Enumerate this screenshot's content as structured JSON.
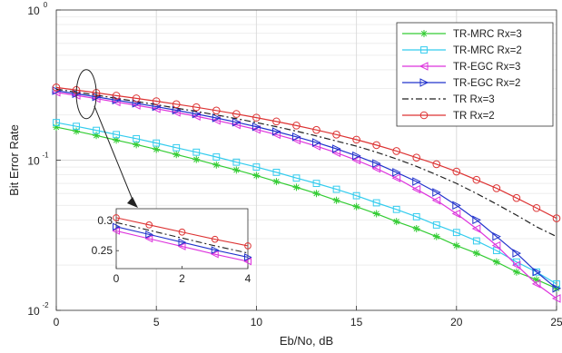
{
  "chart_data": [
    {
      "type": "line",
      "title": "",
      "xlabel": "Eb/No, dB",
      "ylabel": "Bit Error Rate",
      "xlim": [
        0,
        25
      ],
      "ylim": [
        0.01,
        1
      ],
      "yscale": "log",
      "grid": true,
      "legend_position": "top-right",
      "x_ticks": [
        0,
        5,
        10,
        15,
        20,
        25
      ],
      "y_ticks": [
        {
          "value": 0.01,
          "base": "10",
          "exp": "-2"
        },
        {
          "value": 0.1,
          "base": "10",
          "exp": "-1"
        },
        {
          "value": 1,
          "base": "10",
          "exp": "0"
        }
      ],
      "x": [
        0,
        1,
        2,
        3,
        4,
        5,
        6,
        7,
        8,
        9,
        10,
        11,
        12,
        13,
        14,
        15,
        16,
        17,
        18,
        19,
        20,
        21,
        22,
        23,
        24,
        25
      ],
      "series": [
        {
          "name": "TR-MRC Rx=3",
          "color": "#33cc33",
          "marker": "star",
          "values": [
            0.166,
            0.156,
            0.146,
            0.136,
            0.127,
            0.118,
            0.109,
            0.101,
            0.093,
            0.086,
            0.079,
            0.072,
            0.066,
            0.06,
            0.054,
            0.049,
            0.044,
            0.039,
            0.035,
            0.031,
            0.027,
            0.024,
            0.021,
            0.018,
            0.016,
            0.014
          ]
        },
        {
          "name": "TR-MRC Rx=2",
          "color": "#33ccee",
          "marker": "square",
          "values": [
            0.178,
            0.168,
            0.158,
            0.148,
            0.139,
            0.13,
            0.121,
            0.113,
            0.105,
            0.097,
            0.09,
            0.083,
            0.076,
            0.07,
            0.064,
            0.058,
            0.052,
            0.047,
            0.042,
            0.037,
            0.033,
            0.029,
            0.025,
            0.021,
            0.018,
            0.015
          ]
        },
        {
          "name": "TR-EGC Rx=3",
          "color": "#dd33dd",
          "marker": "triangle-left",
          "values": [
            0.283,
            0.27,
            0.257,
            0.244,
            0.232,
            0.22,
            0.208,
            0.196,
            0.184,
            0.172,
            0.16,
            0.148,
            0.136,
            0.124,
            0.112,
            0.1,
            0.088,
            0.076,
            0.064,
            0.054,
            0.044,
            0.035,
            0.027,
            0.02,
            0.015,
            0.012
          ]
        },
        {
          "name": "TR-EGC Rx=2",
          "color": "#2233cc",
          "marker": "triangle-right",
          "values": [
            0.29,
            0.277,
            0.264,
            0.251,
            0.239,
            0.227,
            0.215,
            0.203,
            0.191,
            0.179,
            0.167,
            0.155,
            0.143,
            0.131,
            0.119,
            0.107,
            0.095,
            0.083,
            0.072,
            0.061,
            0.05,
            0.04,
            0.031,
            0.024,
            0.018,
            0.014
          ]
        },
        {
          "name": "TR Rx=3",
          "color": "#222222",
          "marker": "none",
          "dash": "dash-dot",
          "values": [
            0.297,
            0.284,
            0.271,
            0.258,
            0.246,
            0.234,
            0.222,
            0.211,
            0.2,
            0.189,
            0.178,
            0.167,
            0.156,
            0.145,
            0.134,
            0.124,
            0.113,
            0.102,
            0.091,
            0.08,
            0.07,
            0.06,
            0.051,
            0.043,
            0.036,
            0.031
          ]
        },
        {
          "name": "TR Rx=2",
          "color": "#dd3333",
          "marker": "circle",
          "values": [
            0.305,
            0.293,
            0.281,
            0.269,
            0.258,
            0.247,
            0.236,
            0.225,
            0.214,
            0.203,
            0.192,
            0.181,
            0.17,
            0.159,
            0.148,
            0.137,
            0.126,
            0.115,
            0.104,
            0.094,
            0.084,
            0.074,
            0.065,
            0.056,
            0.048,
            0.041
          ]
        }
      ],
      "annotations": [
        "ellipse around the curves near Eb/No = 1.5 dB with an arrow pointing to the zoomed inset"
      ]
    },
    {
      "type": "line",
      "role": "inset",
      "xlim": [
        0,
        4
      ],
      "ylim": [
        0.22,
        0.32
      ],
      "x_ticks": [
        0,
        2,
        4
      ],
      "y_ticks": [
        0.25,
        0.3
      ],
      "x_tick_labels": [
        "0",
        "2",
        "4"
      ],
      "y_tick_labels": [
        "0.25",
        "0.3"
      ],
      "x": [
        0,
        1,
        2,
        3,
        4
      ],
      "series": [
        {
          "name": "TR-EGC Rx=3",
          "color": "#dd33dd",
          "marker": "triangle-left",
          "values": [
            0.283,
            0.27,
            0.257,
            0.244,
            0.232
          ]
        },
        {
          "name": "TR-EGC Rx=2",
          "color": "#2233cc",
          "marker": "triangle-right",
          "values": [
            0.29,
            0.277,
            0.264,
            0.251,
            0.239
          ]
        },
        {
          "name": "TR Rx=3",
          "color": "#222222",
          "marker": "none",
          "dash": "dash-dot",
          "values": [
            0.297,
            0.284,
            0.271,
            0.258,
            0.246
          ]
        },
        {
          "name": "TR Rx=2",
          "color": "#dd3333",
          "marker": "circle",
          "values": [
            0.305,
            0.293,
            0.281,
            0.269,
            0.258
          ]
        }
      ]
    }
  ]
}
